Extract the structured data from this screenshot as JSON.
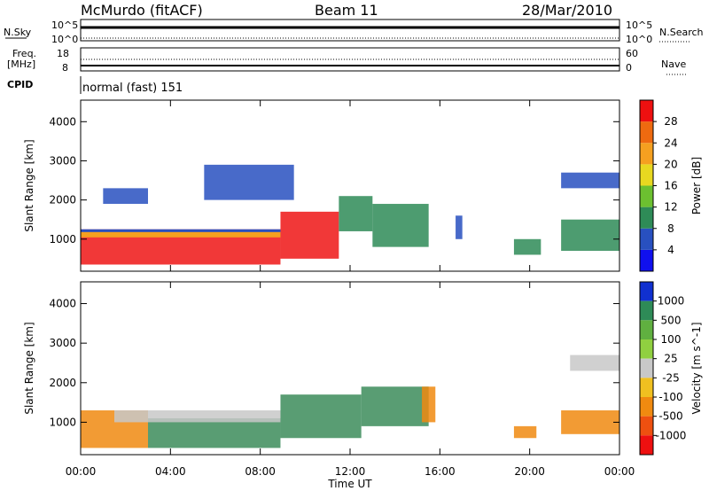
{
  "header": {
    "station": "McMurdo (fitACF)",
    "beam": "Beam 11",
    "date": "28/Mar/2010"
  },
  "top_panels": {
    "nsky_label": "N.Sky",
    "nsky_ticks": [
      "10^5",
      "10^0"
    ],
    "nsearch_label": "N.Search",
    "nsearch_ticks": [
      "10^5",
      "10^0"
    ],
    "freq_label": "Freq.",
    "freq_unit": "[MHz]",
    "freq_ticks": [
      "18",
      "8"
    ],
    "nave_label": "Nave",
    "nave_ticks": [
      "60",
      "0"
    ],
    "cpid_label": "CPID",
    "cpid_value": "normal (fast) 151"
  },
  "chart_data": [
    {
      "type": "heatmap",
      "name": "power-panel",
      "ylabel": "Slant Range [km]",
      "ylim": [
        180,
        4550
      ],
      "yticks": [
        1000,
        2000,
        3000,
        4000
      ],
      "xlim": [
        0,
        24
      ],
      "colorbar": {
        "label": "Power [dB]",
        "ticks": [
          "4",
          "8",
          "12",
          "16",
          "20",
          "24",
          "28"
        ],
        "colors": [
          "#1010ee",
          "#2850c0",
          "#2e8b57",
          "#6cc030",
          "#e8d820",
          "#f5a020",
          "#ee6a10",
          "#ee1010"
        ]
      },
      "regions": [
        {
          "t0": 0.0,
          "t1": 8.9,
          "r0": 350,
          "r1": 1250,
          "level": "high"
        },
        {
          "t0": 8.9,
          "t1": 11.5,
          "r0": 500,
          "r1": 1700,
          "level": "high"
        },
        {
          "t0": 11.5,
          "t1": 13.0,
          "r0": 1200,
          "r1": 2100,
          "level": "mid"
        },
        {
          "t0": 13.0,
          "t1": 15.5,
          "r0": 800,
          "r1": 1900,
          "level": "mid"
        },
        {
          "t0": 16.7,
          "t1": 17.0,
          "r0": 1000,
          "r1": 1600,
          "level": "low"
        },
        {
          "t0": 19.3,
          "t1": 20.5,
          "r0": 600,
          "r1": 1000,
          "level": "mid"
        },
        {
          "t0": 21.4,
          "t1": 24.0,
          "r0": 700,
          "r1": 1500,
          "level": "mid"
        },
        {
          "t0": 21.4,
          "t1": 24.0,
          "r0": 2300,
          "r1": 2700,
          "level": "low"
        },
        {
          "t0": 1.0,
          "t1": 3.0,
          "r0": 1900,
          "r1": 2300,
          "level": "low"
        },
        {
          "t0": 5.5,
          "t1": 9.5,
          "r0": 2000,
          "r1": 2900,
          "level": "low"
        }
      ]
    },
    {
      "type": "heatmap",
      "name": "velocity-panel",
      "ylabel": "Slant Range [km]",
      "ylim": [
        180,
        4550
      ],
      "yticks": [
        1000,
        2000,
        3000,
        4000
      ],
      "xlim": [
        0,
        24
      ],
      "xlabel": "Time UT",
      "xticks": [
        "00:00",
        "04:00",
        "08:00",
        "12:00",
        "16:00",
        "20:00",
        "00:00"
      ],
      "colorbar": {
        "label": "Velocity [m s^-1]",
        "ticks": [
          "1000",
          "500",
          "100",
          "25",
          "-25",
          "-100",
          "-500",
          "-1000"
        ],
        "colors": [
          "#1030d0",
          "#2e8b57",
          "#60b040",
          "#90d040",
          "#c8c8c8",
          "#f0c020",
          "#f08a10",
          "#ee5010",
          "#ee1010"
        ]
      },
      "regions": [
        {
          "t0": 0.0,
          "t1": 3.0,
          "r0": 350,
          "r1": 1300,
          "level": "orange"
        },
        {
          "t0": 3.0,
          "t1": 8.9,
          "r0": 350,
          "r1": 1100,
          "level": "green"
        },
        {
          "t0": 1.5,
          "t1": 8.9,
          "r0": 1000,
          "r1": 1300,
          "level": "gray"
        },
        {
          "t0": 8.9,
          "t1": 12.5,
          "r0": 600,
          "r1": 1700,
          "level": "green"
        },
        {
          "t0": 12.5,
          "t1": 15.5,
          "r0": 900,
          "r1": 1900,
          "level": "green"
        },
        {
          "t0": 15.2,
          "t1": 15.8,
          "r0": 1000,
          "r1": 1900,
          "level": "orange"
        },
        {
          "t0": 19.3,
          "t1": 20.3,
          "r0": 600,
          "r1": 900,
          "level": "orange"
        },
        {
          "t0": 21.4,
          "t1": 24.0,
          "r0": 700,
          "r1": 1300,
          "level": "orange"
        },
        {
          "t0": 21.8,
          "t1": 24.0,
          "r0": 2300,
          "r1": 2700,
          "level": "gray"
        }
      ]
    }
  ]
}
